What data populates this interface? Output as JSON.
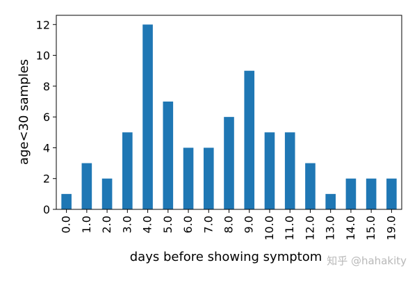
{
  "chart_data": {
    "type": "bar",
    "categories": [
      "0.0",
      "1.0",
      "2.0",
      "3.0",
      "4.0",
      "5.0",
      "6.0",
      "7.0",
      "8.0",
      "9.0",
      "10.0",
      "11.0",
      "12.0",
      "13.0",
      "14.0",
      "15.0",
      "19.0"
    ],
    "values": [
      1,
      3,
      2,
      5,
      12,
      7,
      4,
      4,
      6,
      9,
      5,
      5,
      3,
      1,
      2,
      2,
      2
    ],
    "title": "",
    "xlabel": "days before showing symptom",
    "ylabel": "age<30 samples",
    "ylim": [
      0,
      12.6
    ],
    "yticks": [
      0,
      2,
      4,
      6,
      8,
      10,
      12
    ],
    "grid": false,
    "bar_color": "#1f77b4"
  },
  "watermark": "知乎 @hahakity"
}
